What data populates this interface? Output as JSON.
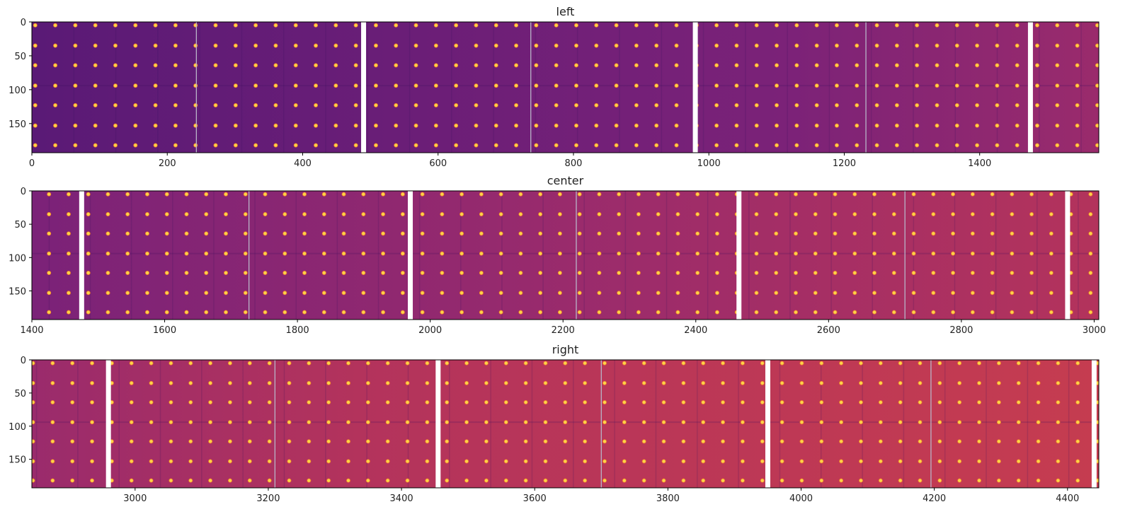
{
  "chart_data": [
    {
      "type": "heatmap",
      "title": "left",
      "xlim": [
        0,
        1576
      ],
      "ylim": [
        193,
        0
      ],
      "xticks": [
        0,
        200,
        400,
        600,
        800,
        1000,
        1200,
        1400
      ],
      "yticks": [
        0,
        50,
        100,
        150
      ]
    },
    {
      "type": "heatmap",
      "title": "center",
      "xlim": [
        1400,
        3007
      ],
      "ylim": [
        193,
        0
      ],
      "xticks": [
        1400,
        1600,
        1800,
        2000,
        2200,
        2400,
        2600,
        2800,
        3000
      ],
      "yticks": [
        0,
        50,
        100,
        150
      ]
    },
    {
      "type": "heatmap",
      "title": "right",
      "xlim": [
        2845,
        4447
      ],
      "ylim": [
        193,
        0
      ],
      "xticks": [
        3000,
        3200,
        3400,
        3600,
        3800,
        4000,
        4200,
        4400
      ],
      "yticks": [
        0,
        50,
        100,
        150
      ]
    }
  ],
  "image_features": {
    "colormap_stops": [
      "#5a1a76",
      "#7b2278",
      "#9a2b6c",
      "#b3335c",
      "#c53c50"
    ],
    "dot_color": "#fcd34a",
    "dot_rows": [
      5,
      35,
      64,
      94,
      123,
      153,
      182
    ],
    "dot_column_spacing": 29.6,
    "white_gaps": [
      490,
      980,
      1475,
      1970,
      2465,
      2960,
      3455,
      3950,
      4440
    ],
    "grey_seams": [
      243,
      737,
      1232,
      1727,
      2220,
      2715,
      3210,
      3700,
      4195
    ]
  }
}
